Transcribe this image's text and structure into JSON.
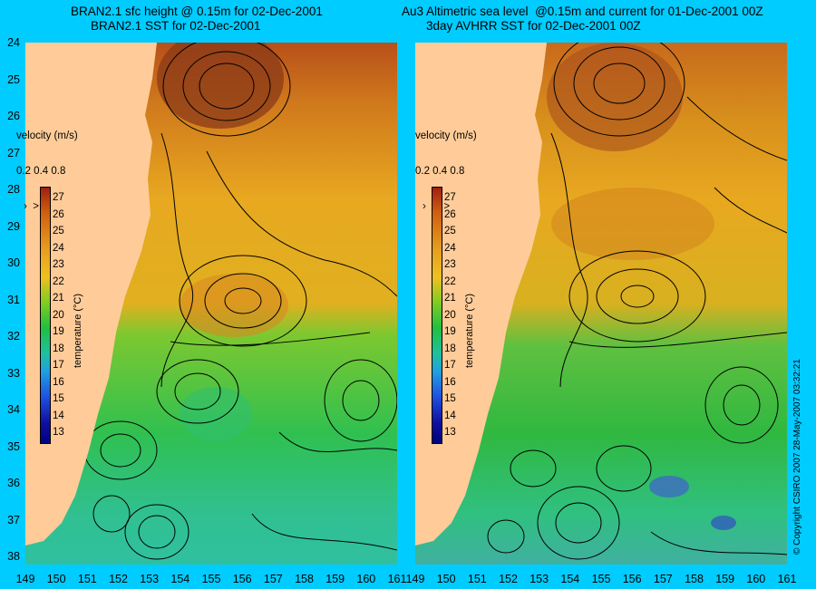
{
  "left_panel": {
    "title_line1": "BRAN2.1 sfc height @ 0.15m for 02-Dec-2001",
    "title_line2": "BRAN2.1 SST for 02-Dec-2001",
    "velocity_label": "velocity (m/s)",
    "velocity_scale": "0.2 0.4 0.8"
  },
  "right_panel": {
    "title_line1": "Au3 Altimetric sea level  @0.15m and current for 01-Dec-2001 00Z",
    "title_line2": "3day AVHRR SST for 02-Dec-2001 00Z",
    "velocity_label": "velocity (m/s)",
    "velocity_scale": "0.2 0.4 0.8"
  },
  "colorbar": {
    "axis_label": "temperature (°C)",
    "ticks": [
      "27",
      "26",
      "25",
      "24",
      "23",
      "22",
      "21",
      "20",
      "19",
      "18",
      "17",
      "16",
      "15",
      "14",
      "13"
    ]
  },
  "axes": {
    "y_ticks": [
      "24",
      "25",
      "26",
      "27",
      "28",
      "29",
      "30",
      "31",
      "32",
      "33",
      "34",
      "35",
      "36",
      "37",
      "38"
    ],
    "x_ticks": [
      "149",
      "150",
      "151",
      "152",
      "153",
      "154",
      "155",
      "156",
      "157",
      "158",
      "159",
      "160",
      "161"
    ]
  },
  "copyright": "© Copyright CSIRO 2007   28-May-2007 03:32:21",
  "colors": {
    "background": "#00ccff",
    "land": "#ffcc99",
    "warm": "#cc5500",
    "cool": "#00cc66"
  }
}
